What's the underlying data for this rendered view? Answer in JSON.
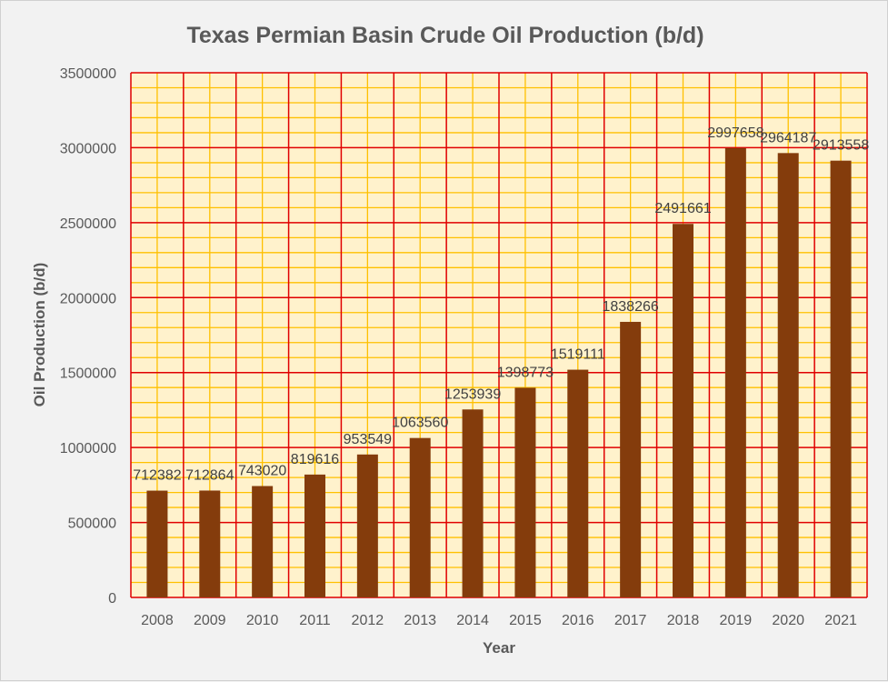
{
  "chart_data": {
    "type": "bar",
    "title": "Texas Permian Basin Crude Oil Production (b/d)",
    "xlabel": "Year",
    "ylabel": "Oil Production (b/d)",
    "categories": [
      "2008",
      "2009",
      "2010",
      "2011",
      "2012",
      "2013",
      "2014",
      "2015",
      "2016",
      "2017",
      "2018",
      "2019",
      "2020",
      "2021"
    ],
    "series": [
      {
        "values": [
          712382,
          712864,
          743020,
          819616,
          953549,
          1063560,
          1253939,
          1398773,
          1519111,
          1838266,
          2491661,
          2997658,
          2964187,
          2913558
        ],
        "color": "#843c0c"
      }
    ],
    "ylim": [
      0,
      3500000
    ],
    "yticks": [
      0,
      500000,
      1000000,
      1500000,
      2000000,
      2500000,
      3000000,
      3500000
    ],
    "minor_step": 100000,
    "grid": true,
    "data_labels": true,
    "colors": {
      "plot_background": "#fff2cc",
      "major_grid": "#e00000",
      "minor_grid": "#ffc000"
    }
  }
}
